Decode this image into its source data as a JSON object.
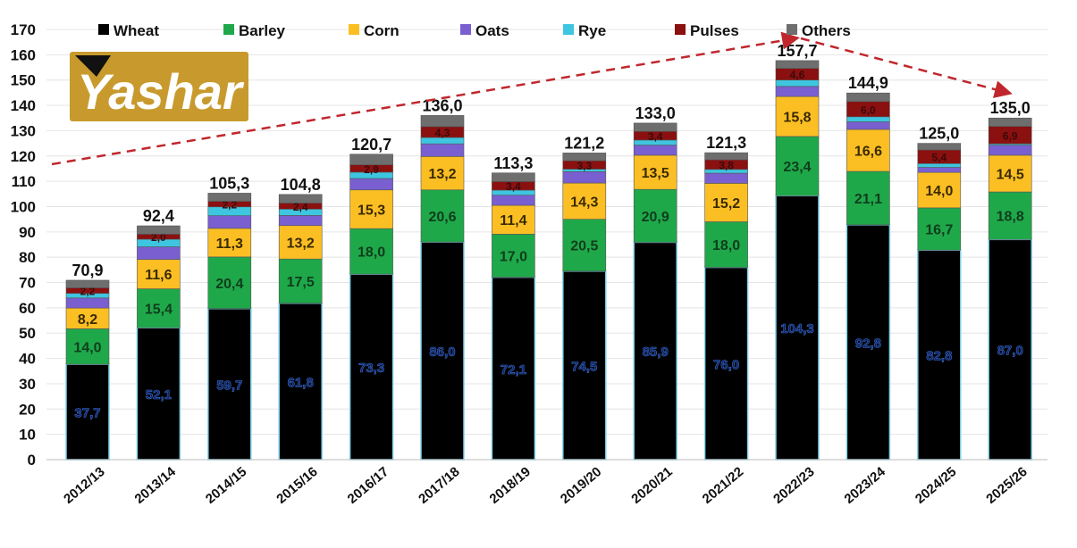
{
  "logo_text": "Yashar",
  "colors": {
    "Wheat": "#000000",
    "Barley": "#1fa84a",
    "Corn": "#fbbf24",
    "Oats": "#7a5fd0",
    "Rye": "#3ec6e0",
    "Pulses": "#8b1010",
    "Others": "#6e6e6e",
    "trend_arrow": "#c0272d"
  },
  "chart_data": {
    "type": "bar",
    "stacked": true,
    "title": "",
    "xlabel": "",
    "ylabel": "",
    "ylim": [
      0,
      170
    ],
    "yticks": [
      0,
      10,
      20,
      30,
      40,
      50,
      60,
      70,
      80,
      90,
      100,
      110,
      120,
      130,
      140,
      150,
      160,
      170
    ],
    "grid": true,
    "legend_position": "top",
    "categories": [
      "2012/13",
      "2013/14",
      "2014/15",
      "2015/16",
      "2016/17",
      "2017/18",
      "2018/19",
      "2019/20",
      "2020/21",
      "2021/22",
      "2022/23",
      "2023/24",
      "2024/25",
      "2025/26"
    ],
    "series": [
      {
        "name": "Wheat",
        "values": [
          37.7,
          52.1,
          59.7,
          61.8,
          73.3,
          86.0,
          72.1,
          74.5,
          85.9,
          76.0,
          104.3,
          92.8,
          82.8,
          87.0
        ],
        "labels": [
          "37,7",
          "52,1",
          "59,7",
          "61,8",
          "73,3",
          "86,0",
          "72,1",
          "74,5",
          "85,9",
          "76,0",
          "104,3",
          "92,8",
          "82,8",
          "87,0"
        ]
      },
      {
        "name": "Barley",
        "values": [
          14.0,
          15.4,
          20.4,
          17.5,
          18.0,
          20.6,
          17.0,
          20.5,
          20.9,
          18.0,
          23.4,
          21.1,
          16.7,
          18.8
        ],
        "labels": [
          "14,0",
          "15,4",
          "20,4",
          "17,5",
          "18,0",
          "20,6",
          "17,0",
          "20,5",
          "20,9",
          "18,0",
          "23,4",
          "21,1",
          "16,7",
          "18,8"
        ]
      },
      {
        "name": "Corn",
        "values": [
          8.2,
          11.6,
          11.3,
          13.2,
          15.3,
          13.2,
          11.4,
          14.3,
          13.5,
          15.2,
          15.8,
          16.6,
          14.0,
          14.5
        ],
        "labels": [
          "8,2",
          "11,6",
          "11,3",
          "13,2",
          "15,3",
          "13,2",
          "11,4",
          "14,3",
          "13,5",
          "15,2",
          "15,8",
          "16,6",
          "14,0",
          "14,5"
        ]
      },
      {
        "name": "Oats",
        "values": [
          4.0,
          5.0,
          5.0,
          4.0,
          4.5,
          5.0,
          4.0,
          4.5,
          4.0,
          4.0,
          4.0,
          3.0,
          2.0,
          4.0
        ]
      },
      {
        "name": "Rye",
        "values": [
          1.8,
          3.0,
          3.5,
          2.5,
          2.5,
          2.5,
          2.0,
          1.0,
          2.0,
          1.5,
          2.5,
          2.0,
          1.5,
          0.5
        ]
      },
      {
        "name": "Pulses",
        "values": [
          2.2,
          2.0,
          2.2,
          2.4,
          2.9,
          4.3,
          3.4,
          3.3,
          3.4,
          3.8,
          4.6,
          6.0,
          5.4,
          6.9
        ],
        "labels": [
          "2,2",
          "2,0",
          "2,2",
          "2,4",
          "2,9",
          "4,3",
          "3,4",
          "3,3",
          "3,4",
          "3,8",
          "4,6",
          "6,0",
          "5,4",
          "6,9"
        ]
      },
      {
        "name": "Others",
        "values": [
          3.0,
          3.3,
          3.2,
          3.4,
          4.2,
          4.4,
          3.4,
          3.1,
          3.3,
          2.8,
          3.1,
          3.4,
          2.6,
          3.3
        ]
      }
    ],
    "totals": [
      70.9,
      92.4,
      105.3,
      104.8,
      120.7,
      136.0,
      113.3,
      121.2,
      133.0,
      121.3,
      157.7,
      144.9,
      125.0,
      135.0
    ],
    "total_labels": [
      "70,9",
      "92,4",
      "105,3",
      "104,8",
      "120,7",
      "136,0",
      "113,3",
      "121,2",
      "133,0",
      "121,3",
      "157,7",
      "144,9",
      "125,0",
      "135,0"
    ]
  }
}
